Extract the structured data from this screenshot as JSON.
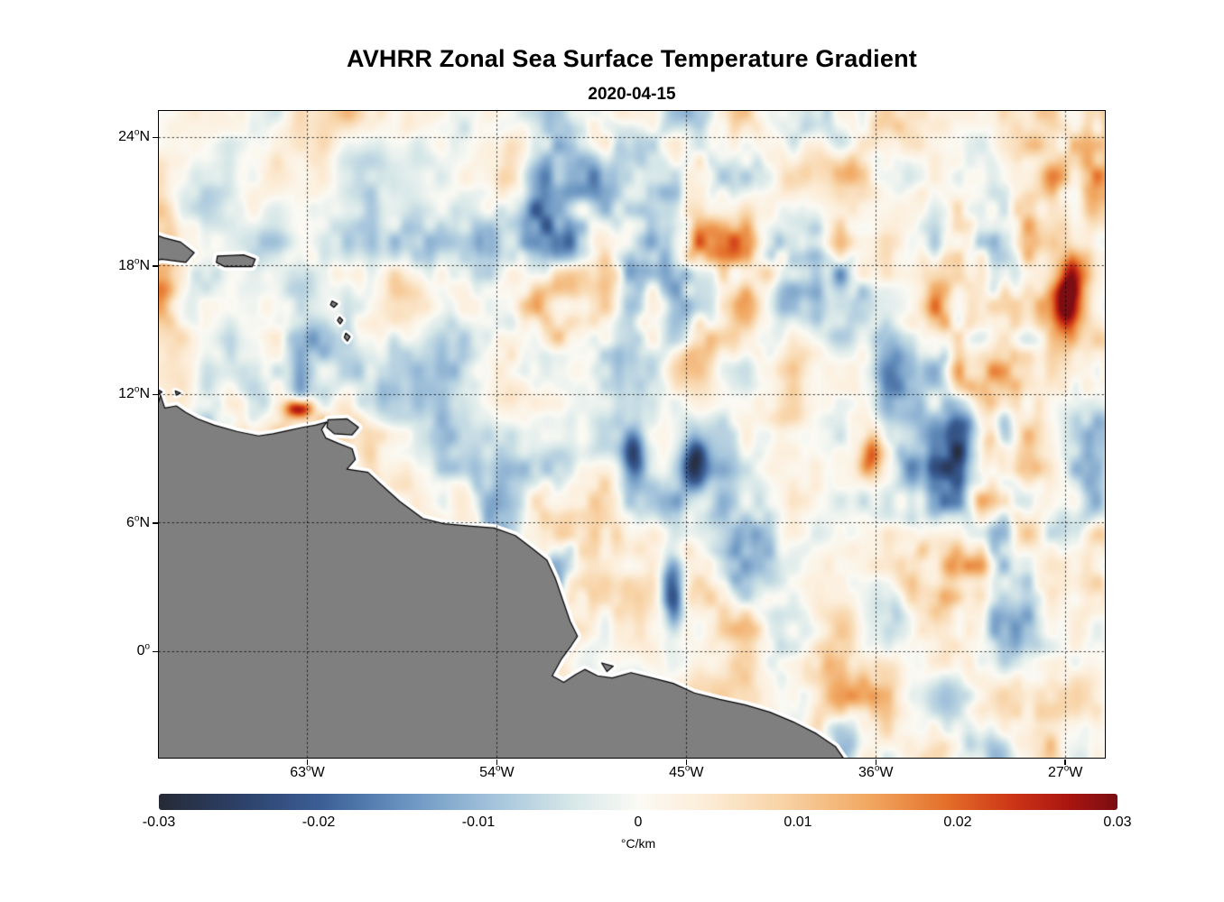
{
  "chart_data": {
    "type": "heatmap",
    "title": "AVHRR Zonal Sea Surface Temperature Gradient",
    "subtitle": "2020-04-15",
    "map_extent": {
      "lon": [
        -70.03,
        -25.1
      ],
      "lat": [
        -4.97,
        25.22
      ]
    },
    "x_axis": {
      "ticks": [
        {
          "lon": -63,
          "label": "63",
          "hemi": "W"
        },
        {
          "lon": -54,
          "label": "54",
          "hemi": "W"
        },
        {
          "lon": -45,
          "label": "45",
          "hemi": "W"
        },
        {
          "lon": -36,
          "label": "36",
          "hemi": "W"
        },
        {
          "lon": -27,
          "label": "27",
          "hemi": "W"
        }
      ]
    },
    "y_axis": {
      "ticks": [
        {
          "lat": 24,
          "label": "24",
          "hemi": "N"
        },
        {
          "lat": 18,
          "label": "18",
          "hemi": "N"
        },
        {
          "lat": 12,
          "label": "12",
          "hemi": "N"
        },
        {
          "lat": 6,
          "label": "6",
          "hemi": "N"
        },
        {
          "lat": 0,
          "label": "0",
          "hemi": ""
        }
      ]
    },
    "grid": {
      "lons": [
        -63,
        -54,
        -45,
        -36,
        -27
      ],
      "lats": [
        0,
        6,
        12,
        18,
        24
      ],
      "style": "dotted",
      "color": "#000000"
    },
    "field": {
      "units": "°C/km",
      "range": [
        -0.03,
        0.03
      ],
      "seed": 20200415,
      "description": "Mesoscale zonal SST gradient field: mostly near-zero pale values with scattered positive (orange/red) and negative (blue) blobs, stronger in the eastern half; land masked gray with white coastal data gap."
    },
    "hotspots": [
      {
        "lon": -63.4,
        "lat": 11.35,
        "amp": 0.032,
        "sx": 0.45,
        "sy": 0.32
      },
      {
        "lon": -45.7,
        "lat": 2.8,
        "amp": -0.027,
        "sx": 0.42,
        "sy": 1.3
      },
      {
        "lon": -26.9,
        "lat": 16.3,
        "amp": 0.027,
        "sx": 0.5,
        "sy": 1.6
      },
      {
        "lon": -30.6,
        "lat": 9.6,
        "amp": 0.025,
        "sx": 0.55,
        "sy": 1.0
      },
      {
        "lon": -44.6,
        "lat": 8.8,
        "amp": -0.024,
        "sx": 0.45,
        "sy": 0.95
      },
      {
        "lon": -36.2,
        "lat": 9.3,
        "amp": 0.022,
        "sx": 0.4,
        "sy": 0.8
      },
      {
        "lon": -47.5,
        "lat": 9.2,
        "amp": -0.022,
        "sx": 0.4,
        "sy": 0.85
      }
    ],
    "colormap": {
      "stops": [
        {
          "t": 0.0,
          "color": "#262a36"
        },
        {
          "t": 0.08,
          "color": "#2c3f66"
        },
        {
          "t": 0.17,
          "color": "#3b5f96"
        },
        {
          "t": 0.26,
          "color": "#6b95c1"
        },
        {
          "t": 0.35,
          "color": "#a4c4dc"
        },
        {
          "t": 0.43,
          "color": "#d6e7e8"
        },
        {
          "t": 0.5,
          "color": "#fbfaf4"
        },
        {
          "t": 0.57,
          "color": "#fcedd8"
        },
        {
          "t": 0.65,
          "color": "#f8d3a6"
        },
        {
          "t": 0.74,
          "color": "#f1a862"
        },
        {
          "t": 0.82,
          "color": "#e4702a"
        },
        {
          "t": 0.89,
          "color": "#cd3517"
        },
        {
          "t": 0.95,
          "color": "#a91510"
        },
        {
          "t": 1.0,
          "color": "#7a0d13"
        }
      ]
    },
    "colorbar": {
      "orientation": "horizontal",
      "unit_label": "°C/km",
      "ticks": [
        {
          "value": -0.03,
          "label": "-0.03"
        },
        {
          "value": -0.02,
          "label": "-0.02"
        },
        {
          "value": -0.01,
          "label": "-0.01"
        },
        {
          "value": 0,
          "label": "0"
        },
        {
          "value": 0.01,
          "label": "0.01"
        },
        {
          "value": 0.02,
          "label": "0.02"
        },
        {
          "value": 0.03,
          "label": "0.03"
        }
      ]
    },
    "land": {
      "fill": "#7f7f7f",
      "coast": "#000000",
      "halo": "#ffffff",
      "polygons": {
        "mainland": [
          [
            -70.6,
            11.35
          ],
          [
            -70.15,
            11.25
          ],
          [
            -69.95,
            11.95
          ],
          [
            -69.75,
            11.35
          ],
          [
            -69.2,
            11.45
          ],
          [
            -68.75,
            11.15
          ],
          [
            -68.2,
            10.85
          ],
          [
            -67.4,
            10.55
          ],
          [
            -66.3,
            10.25
          ],
          [
            -65.3,
            10.05
          ],
          [
            -64.6,
            10.15
          ],
          [
            -63.9,
            10.3
          ],
          [
            -63.2,
            10.45
          ],
          [
            -62.6,
            10.55
          ],
          [
            -62.05,
            10.7
          ],
          [
            -62.3,
            10.35
          ],
          [
            -62.1,
            9.95
          ],
          [
            -61.5,
            9.7
          ],
          [
            -60.85,
            9.45
          ],
          [
            -60.7,
            8.95
          ],
          [
            -61.1,
            8.5
          ],
          [
            -60.1,
            8.35
          ],
          [
            -59.5,
            7.8
          ],
          [
            -58.6,
            7.0
          ],
          [
            -57.5,
            6.2
          ],
          [
            -56.5,
            5.95
          ],
          [
            -55.3,
            5.85
          ],
          [
            -54.1,
            5.75
          ],
          [
            -53.1,
            5.4
          ],
          [
            -52.3,
            4.8
          ],
          [
            -51.6,
            4.25
          ],
          [
            -51.2,
            3.4
          ],
          [
            -50.85,
            2.4
          ],
          [
            -50.5,
            1.4
          ],
          [
            -50.15,
            0.7
          ],
          [
            -50.45,
            0.25
          ],
          [
            -50.9,
            -0.35
          ],
          [
            -51.35,
            -1.15
          ],
          [
            -50.8,
            -1.45
          ],
          [
            -50.25,
            -1.1
          ],
          [
            -49.8,
            -0.85
          ],
          [
            -49.2,
            -1.15
          ],
          [
            -48.5,
            -1.25
          ],
          [
            -47.6,
            -1.0
          ],
          [
            -46.6,
            -1.25
          ],
          [
            -45.6,
            -1.5
          ],
          [
            -44.6,
            -1.95
          ],
          [
            -43.4,
            -2.25
          ],
          [
            -42.2,
            -2.5
          ],
          [
            -41.0,
            -2.85
          ],
          [
            -39.9,
            -3.3
          ],
          [
            -38.8,
            -3.85
          ],
          [
            -37.9,
            -4.45
          ],
          [
            -37.3,
            -5.3
          ],
          [
            -36.8,
            -6.0
          ],
          [
            -71.0,
            -6.0
          ]
        ],
        "trinidad": [
          [
            -62.0,
            10.8
          ],
          [
            -61.1,
            10.85
          ],
          [
            -60.55,
            10.45
          ],
          [
            -60.85,
            10.1
          ],
          [
            -61.7,
            10.15
          ],
          [
            -62.05,
            10.45
          ]
        ],
        "hispaniola": [
          [
            -70.6,
            19.6
          ],
          [
            -69.8,
            19.3
          ],
          [
            -69.0,
            19.1
          ],
          [
            -68.35,
            18.6
          ],
          [
            -68.75,
            18.15
          ],
          [
            -69.9,
            18.3
          ],
          [
            -70.6,
            18.1
          ]
        ],
        "puerto_rico": [
          [
            -67.25,
            18.45
          ],
          [
            -66.0,
            18.5
          ],
          [
            -65.45,
            18.3
          ],
          [
            -65.6,
            17.95
          ],
          [
            -66.9,
            17.95
          ],
          [
            -67.3,
            18.15
          ]
        ],
        "small_islands": [
          [
            [
              -70.05,
              12.2
            ],
            [
              -69.88,
              12.1
            ],
            [
              -70.02,
              12.0
            ]
          ],
          [
            [
              -69.25,
              12.15
            ],
            [
              -69.0,
              12.05
            ],
            [
              -69.2,
              11.95
            ]
          ],
          [
            [
              -61.8,
              16.35
            ],
            [
              -61.55,
              16.22
            ],
            [
              -61.72,
              16.05
            ],
            [
              -61.88,
              16.18
            ]
          ],
          [
            [
              -61.45,
              15.6
            ],
            [
              -61.3,
              15.45
            ],
            [
              -61.42,
              15.28
            ],
            [
              -61.55,
              15.45
            ]
          ],
          [
            [
              -61.15,
              14.85
            ],
            [
              -60.95,
              14.68
            ],
            [
              -61.08,
              14.48
            ],
            [
              -61.22,
              14.65
            ]
          ],
          [
            [
              -49.0,
              -0.55
            ],
            [
              -48.45,
              -0.7
            ],
            [
              -48.75,
              -0.95
            ]
          ]
        ]
      }
    }
  }
}
